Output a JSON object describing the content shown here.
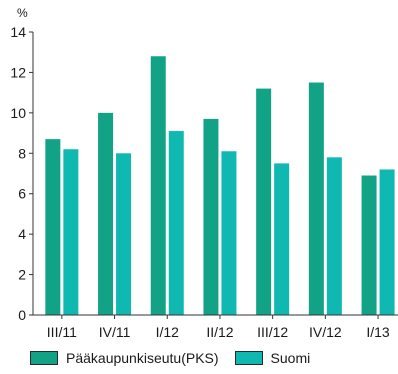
{
  "chart_data": {
    "type": "bar",
    "unit": "%",
    "categories": [
      "III/11",
      "IV/11",
      "I/12",
      "II/12",
      "III/12",
      "IV/12",
      "I/13"
    ],
    "series": [
      {
        "name": "Pääkaupunkiseutu(PKS)",
        "color": "#12a387",
        "values": [
          8.7,
          10.0,
          12.8,
          9.7,
          11.2,
          11.5,
          6.9
        ]
      },
      {
        "name": "Suomi",
        "color": "#0fb9b1",
        "values": [
          8.2,
          8.0,
          9.1,
          8.1,
          7.5,
          7.8,
          7.2
        ]
      }
    ],
    "ylim": [
      0,
      14
    ],
    "yticks": [
      0,
      2,
      4,
      6,
      8,
      10,
      12,
      14
    ],
    "grid": false,
    "legend": "bottom"
  }
}
